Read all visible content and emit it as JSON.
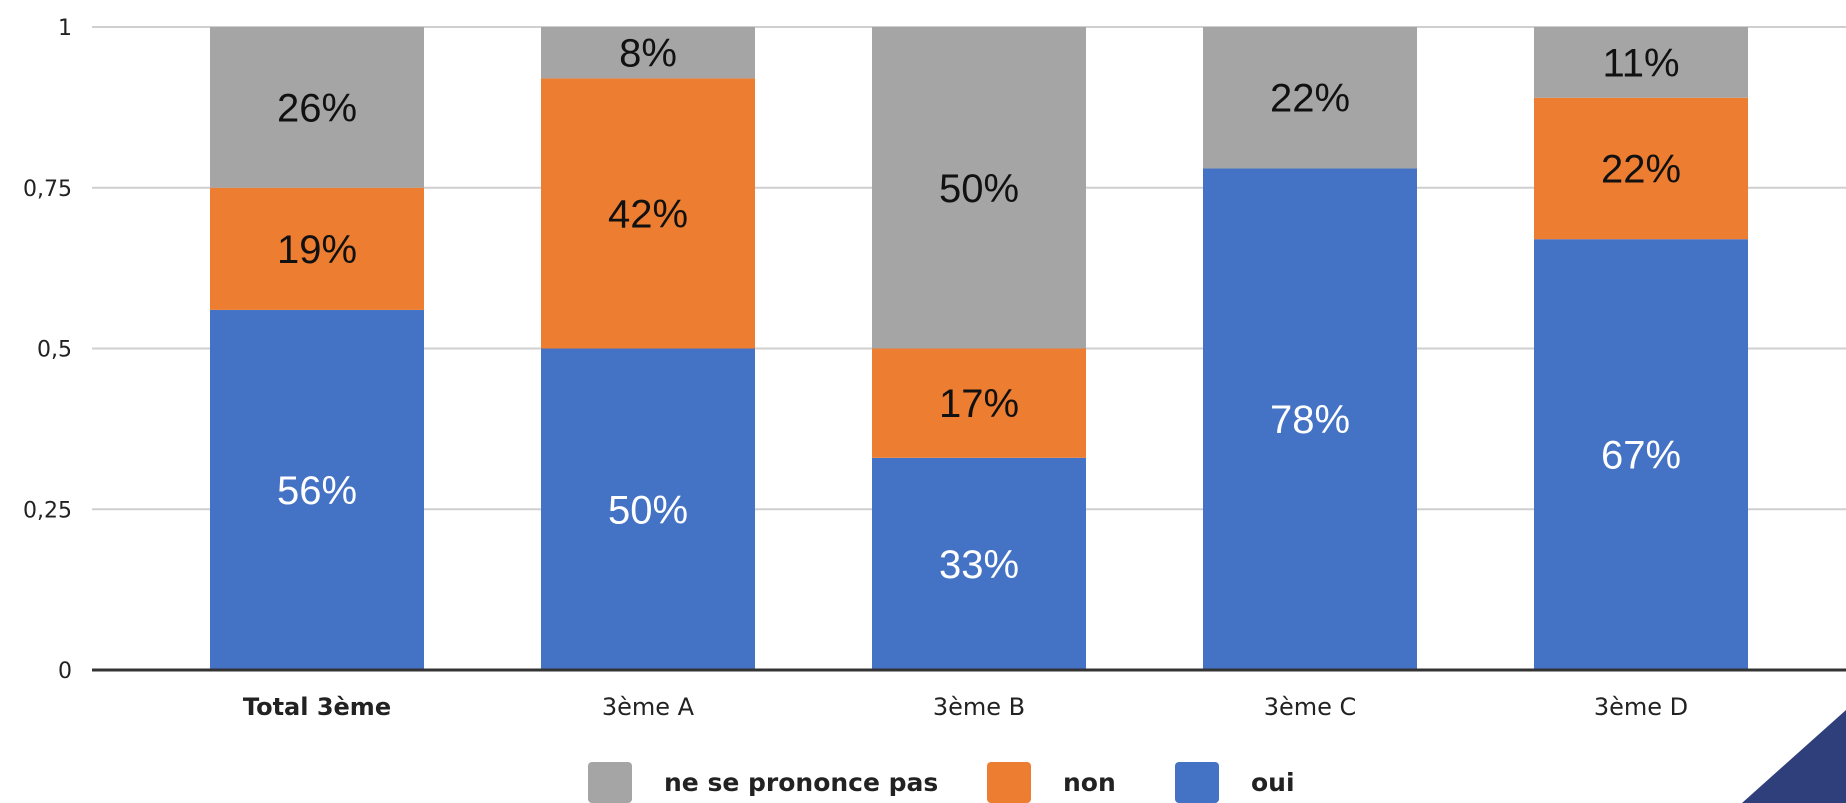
{
  "chart_data": {
    "type": "bar",
    "stacked": true,
    "categories": [
      "Total 3ème",
      "3ème A",
      "3ème B",
      "3ème C",
      "3ème D"
    ],
    "series": [
      {
        "name": "oui",
        "color": "#4472c4",
        "label_color": "#ffffff",
        "values": [
          0.56,
          0.5,
          0.33,
          0.78,
          0.67
        ],
        "labels": [
          "56%",
          "50%",
          "33%",
          "78%",
          "67%"
        ]
      },
      {
        "name": "non",
        "color": "#ed7d31",
        "label_color": "#111111",
        "values": [
          0.19,
          0.42,
          0.17,
          0,
          0.22
        ],
        "labels": [
          "19%",
          "42%",
          "17%",
          "",
          "22%"
        ]
      },
      {
        "name": "ne se prononce pas",
        "color": "#a5a5a5",
        "label_color": "#111111",
        "values": [
          0.26,
          0.08,
          0.5,
          0.22,
          0.11
        ],
        "labels": [
          "26%",
          "8%",
          "50%",
          "22%",
          "11%"
        ]
      }
    ],
    "y_ticks": [
      {
        "value": 0,
        "label": "0"
      },
      {
        "value": 0.25,
        "label": "0,25"
      },
      {
        "value": 0.5,
        "label": "0,5"
      },
      {
        "value": 0.75,
        "label": "0,75"
      },
      {
        "value": 1,
        "label": "1"
      }
    ],
    "ylim": [
      0,
      1
    ],
    "grid": true,
    "legend": {
      "position": "bottom",
      "order": [
        "ne se prononce pas",
        "non",
        "oui"
      ]
    },
    "corner_decoration_color": "#2e3f7c"
  }
}
